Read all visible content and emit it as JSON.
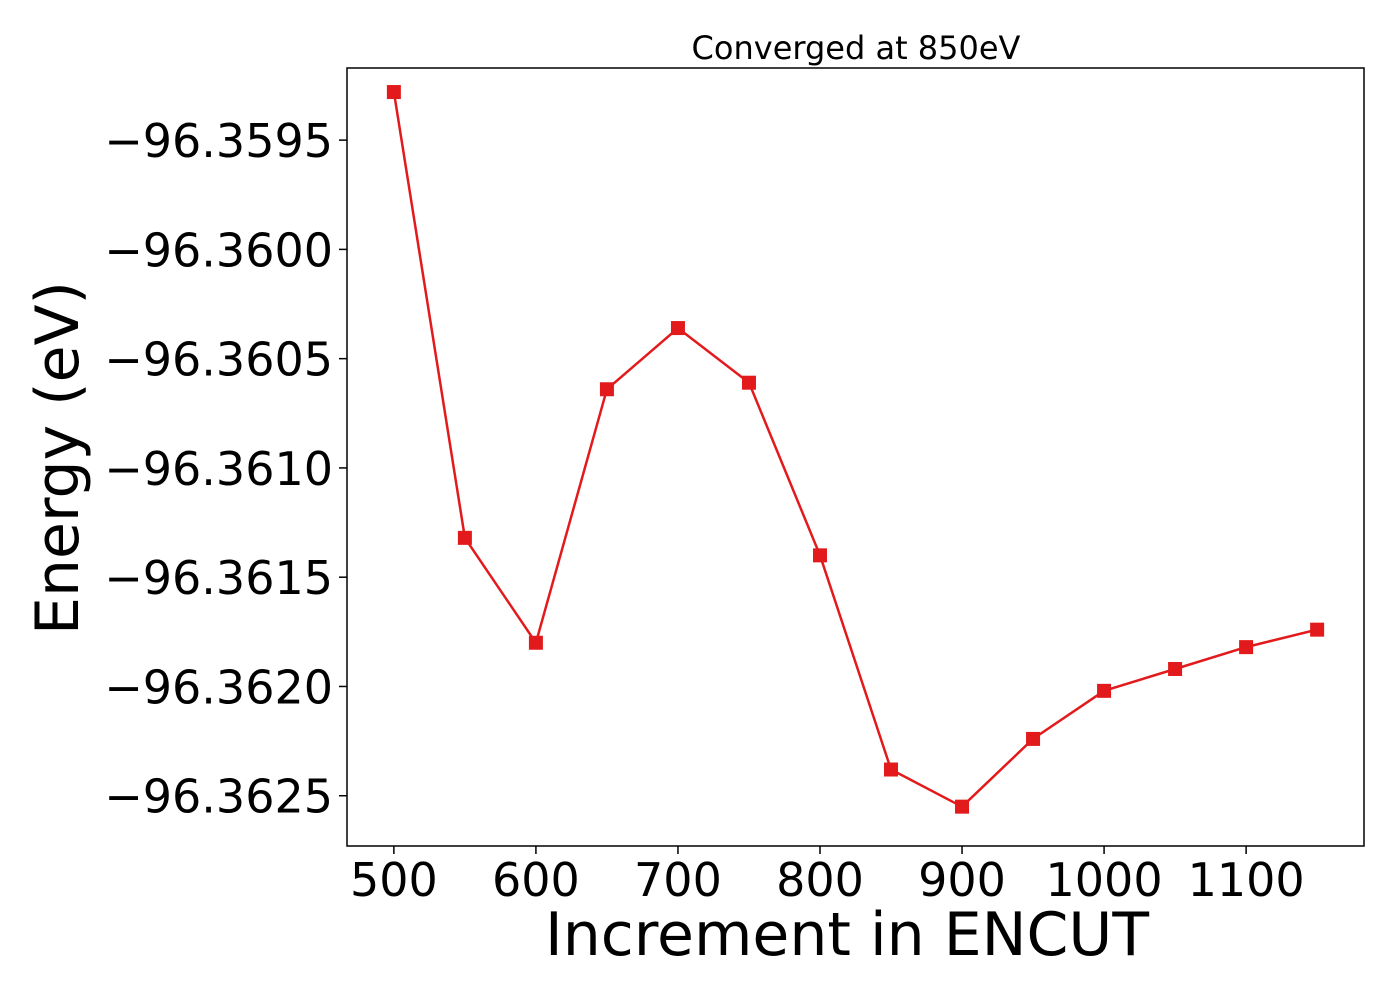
{
  "chart_data": {
    "type": "line",
    "title": "Converged at 850eV",
    "xlabel": "Increment in ENCUT",
    "ylabel": "Energy (eV)",
    "xlim": [
      467,
      1183
    ],
    "ylim": [
      -96.36273,
      -96.35917
    ],
    "x_ticks": [
      500,
      600,
      700,
      800,
      900,
      1000,
      1100
    ],
    "x_tick_labels": [
      "500",
      "600",
      "700",
      "800",
      "900",
      "1000",
      "1100"
    ],
    "y_ticks": [
      -96.3595,
      -96.36,
      -96.3605,
      -96.361,
      -96.3615,
      -96.362,
      -96.3625
    ],
    "y_tick_labels": [
      "−96.3595",
      "−96.3600",
      "−96.3605",
      "−96.3610",
      "−96.3615",
      "−96.3620",
      "−96.3625"
    ],
    "grid": false,
    "series": [
      {
        "color": "#e31a1c",
        "marker": "square",
        "x": [
          500,
          550,
          600,
          650,
          700,
          750,
          800,
          850,
          900,
          950,
          1000,
          1050,
          1100,
          1150
        ],
        "y": [
          -96.35928,
          -96.36132,
          -96.3618,
          -96.36064,
          -96.36036,
          -96.36061,
          -96.3614,
          -96.36238,
          -96.36255,
          -96.36224,
          -96.36202,
          -96.36192,
          -96.36182,
          -96.36174
        ]
      }
    ]
  }
}
